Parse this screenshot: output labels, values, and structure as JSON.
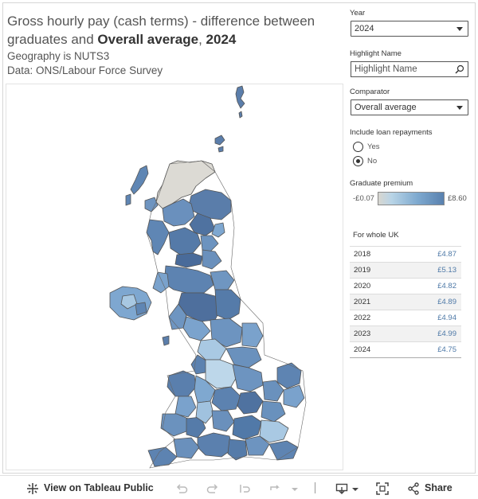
{
  "title": {
    "part1": "Gross hourly pay (cash terms) - difference between graduates and ",
    "bold1": "Overall average",
    "part2": ", ",
    "bold2": "2024"
  },
  "subtitle": "Geography is NUTS3",
  "source": "Data: ONS/Labour Force Survey",
  "filters": {
    "year_label": "Year",
    "year_value": "2024",
    "highlight_label": "Highlight Name",
    "highlight_placeholder": "Highlight Name",
    "comparator_label": "Comparator",
    "comparator_value": "Overall average",
    "loan_label": "Include loan repayments",
    "loan_options": [
      "Yes",
      "No"
    ],
    "loan_selected": "No"
  },
  "legend": {
    "label": "Graduate premium",
    "min": "-£0.07",
    "max": "£8.60"
  },
  "uk_table": {
    "label": "For whole UK",
    "rows": [
      {
        "year": "2018",
        "value": "£4.87"
      },
      {
        "year": "2019",
        "value": "£5.13"
      },
      {
        "year": "2020",
        "value": "£4.82"
      },
      {
        "year": "2021",
        "value": "£4.89"
      },
      {
        "year": "2022",
        "value": "£4.94"
      },
      {
        "year": "2023",
        "value": "£4.99"
      },
      {
        "year": "2024",
        "value": "£4.75"
      }
    ]
  },
  "toolbar": {
    "view_label": "View on Tableau Public",
    "share_label": "Share"
  },
  "colors": {
    "dark_blue": "#4e6f9d",
    "mid_blue": "#7aa2cc",
    "light_blue": "#b7d1e6",
    "grey": "#dcdad4",
    "value_text": "#4e79a7"
  }
}
